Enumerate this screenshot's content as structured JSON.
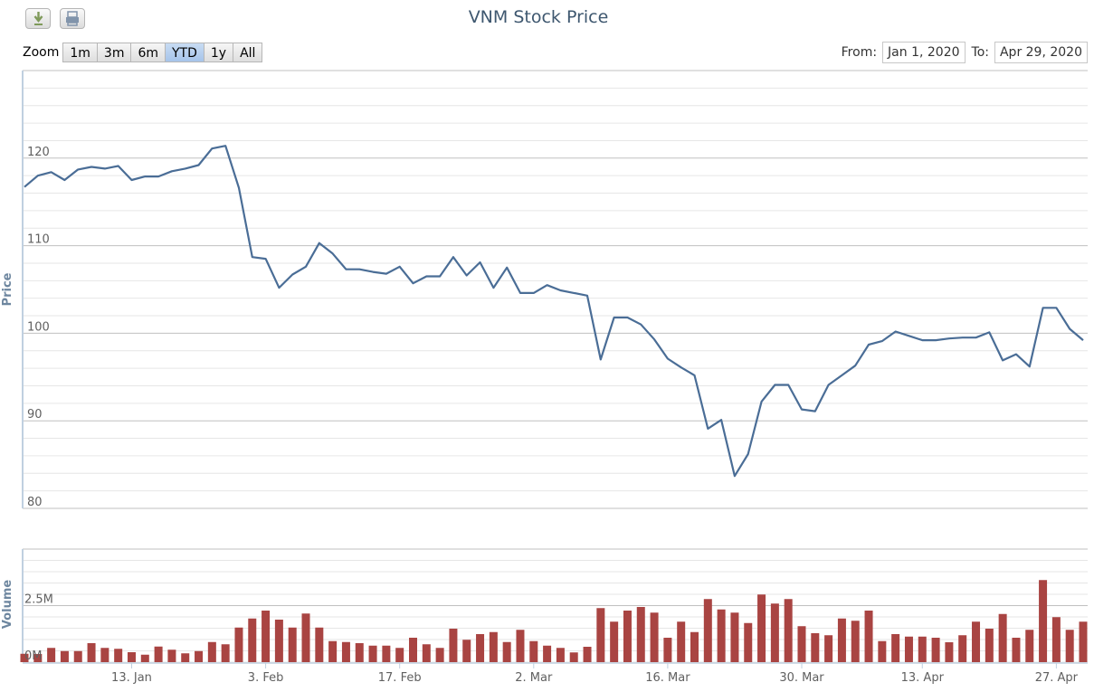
{
  "title": "VNM Stock Price",
  "toolbar": {
    "export_icon": "download-icon",
    "print_icon": "print-icon"
  },
  "zoom": {
    "label": "Zoom",
    "buttons": [
      "1m",
      "3m",
      "6m",
      "YTD",
      "1y",
      "All"
    ],
    "active": "YTD"
  },
  "range": {
    "from_label": "From:",
    "from_value": "Jan 1, 2020",
    "to_label": "To:",
    "to_value": "Apr 29, 2020"
  },
  "colors": {
    "price_line": "#4a6d96",
    "volume_bar": "#a94442",
    "axis_title": "#6d869f"
  },
  "chart_data": {
    "type": "stock",
    "x_tick_labels": [
      "13. Jan",
      "3. Feb",
      "17. Feb",
      "2. Mar",
      "16. Mar",
      "30. Mar",
      "13. Apr",
      "27. Apr"
    ],
    "dates": [
      "2020-01-01",
      "2020-01-02",
      "2020-01-03",
      "2020-01-06",
      "2020-01-07",
      "2020-01-08",
      "2020-01-09",
      "2020-01-10",
      "2020-01-13",
      "2020-01-14",
      "2020-01-15",
      "2020-01-16",
      "2020-01-17",
      "2020-01-20",
      "2020-01-21",
      "2020-01-22",
      "2020-01-30",
      "2020-01-31",
      "2020-02-03",
      "2020-02-04",
      "2020-02-05",
      "2020-02-06",
      "2020-02-07",
      "2020-02-10",
      "2020-02-11",
      "2020-02-12",
      "2020-02-13",
      "2020-02-14",
      "2020-02-17",
      "2020-02-18",
      "2020-02-19",
      "2020-02-20",
      "2020-02-21",
      "2020-02-24",
      "2020-02-25",
      "2020-02-26",
      "2020-02-27",
      "2020-02-28",
      "2020-03-02",
      "2020-03-03",
      "2020-03-04",
      "2020-03-05",
      "2020-03-06",
      "2020-03-09",
      "2020-03-10",
      "2020-03-11",
      "2020-03-12",
      "2020-03-13",
      "2020-03-16",
      "2020-03-17",
      "2020-03-18",
      "2020-03-19",
      "2020-03-20",
      "2020-03-23",
      "2020-03-24",
      "2020-03-25",
      "2020-03-26",
      "2020-03-27",
      "2020-03-30",
      "2020-03-31",
      "2020-04-01",
      "2020-04-03",
      "2020-04-06",
      "2020-04-07",
      "2020-04-08",
      "2020-04-09",
      "2020-04-10",
      "2020-04-13",
      "2020-04-14",
      "2020-04-15",
      "2020-04-16",
      "2020-04-17",
      "2020-04-20",
      "2020-04-21",
      "2020-04-22",
      "2020-04-23",
      "2020-04-24",
      "2020-04-27",
      "2020-04-28",
      "2020-04-29"
    ],
    "panes": [
      {
        "name": "Price",
        "ylabel": "Price",
        "type": "line",
        "ylim": [
          80,
          130
        ],
        "tick_labels": [
          "80",
          "90",
          "100",
          "110",
          "120"
        ],
        "grid": true,
        "values": [
          116.7,
          118.0,
          118.4,
          117.5,
          118.7,
          119.0,
          118.8,
          119.1,
          117.5,
          117.9,
          117.9,
          118.5,
          118.8,
          119.2,
          121.1,
          121.4,
          116.6,
          108.7,
          108.5,
          105.2,
          106.7,
          107.6,
          110.3,
          109.1,
          107.3,
          107.3,
          107.0,
          106.8,
          107.6,
          105.7,
          106.5,
          106.5,
          108.7,
          106.6,
          108.1,
          105.2,
          107.5,
          104.6,
          104.6,
          105.5,
          104.9,
          104.6,
          104.3,
          97.0,
          101.8,
          101.8,
          101.0,
          99.3,
          97.1,
          96.1,
          95.2,
          89.1,
          90.1,
          83.7,
          86.2,
          92.2,
          94.1,
          94.1,
          91.3,
          91.1,
          94.1,
          95.2,
          96.3,
          98.7,
          99.1,
          100.2,
          99.7,
          99.2,
          99.2,
          99.4,
          99.5,
          99.5,
          100.1,
          96.9,
          97.6,
          96.2,
          102.9,
          102.9,
          100.5,
          99.2
        ]
      },
      {
        "name": "Volume",
        "ylabel": "Volume",
        "type": "bar",
        "unit": "M",
        "ylim": [
          0,
          5
        ],
        "tick_labels": [
          "0M",
          "2.5M"
        ],
        "grid": true,
        "values": [
          0.37,
          0.36,
          0.63,
          0.49,
          0.49,
          0.84,
          0.63,
          0.59,
          0.44,
          0.33,
          0.69,
          0.55,
          0.39,
          0.49,
          0.89,
          0.79,
          1.53,
          1.93,
          2.28,
          1.88,
          1.53,
          2.15,
          1.53,
          0.93,
          0.89,
          0.84,
          0.73,
          0.73,
          0.63,
          1.08,
          0.79,
          0.63,
          1.48,
          0.99,
          1.24,
          1.33,
          0.89,
          1.43,
          0.93,
          0.73,
          0.63,
          0.43,
          0.68,
          2.39,
          1.79,
          2.28,
          2.44,
          2.19,
          1.08,
          1.79,
          1.33,
          2.79,
          2.33,
          2.19,
          1.73,
          2.99,
          2.59,
          2.79,
          1.59,
          1.28,
          1.19,
          1.93,
          1.83,
          2.28,
          0.93,
          1.24,
          1.13,
          1.13,
          1.08,
          0.88,
          1.19,
          1.79,
          1.48,
          2.13,
          1.08,
          1.43,
          3.63,
          1.99,
          1.43,
          1.79
        ]
      }
    ]
  }
}
